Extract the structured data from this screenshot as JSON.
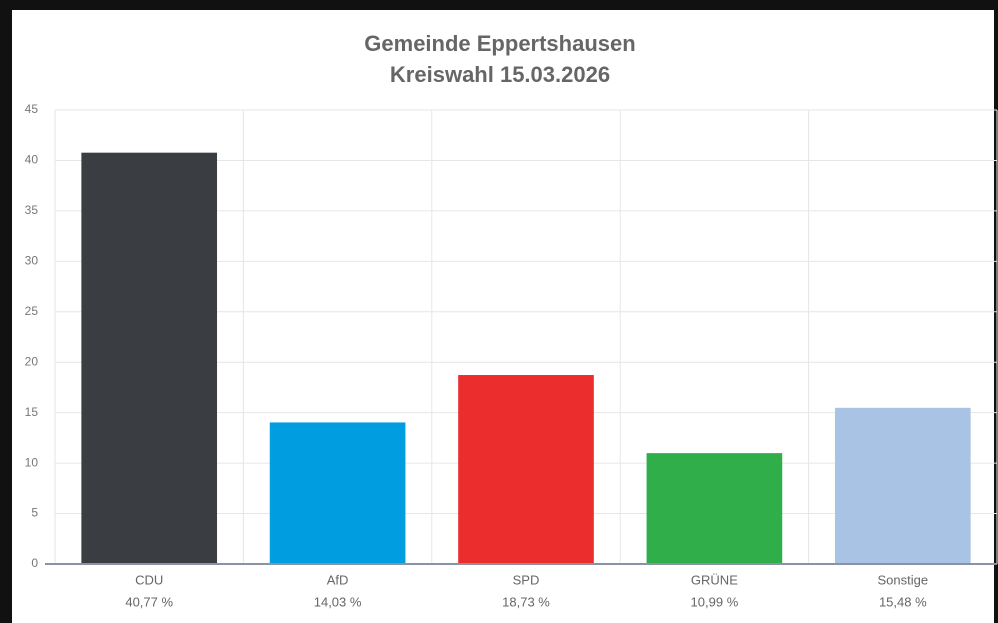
{
  "chart_data": {
    "type": "bar",
    "title": "Gemeinde Eppertshausen",
    "subtitle": "Kreiswahl 15.03.2026",
    "categories": [
      "CDU",
      "AfD",
      "SPD",
      "GRÜNE",
      "Sonstige"
    ],
    "values": [
      40.77,
      14.03,
      18.73,
      10.99,
      15.48
    ],
    "value_labels": [
      "40,77 %",
      "14,03 %",
      "18,73 %",
      "10,99 %",
      "15,48 %"
    ],
    "colors": [
      "#3a3d41",
      "#009ee0",
      "#eb2d2e",
      "#2fae4a",
      "#a9c3e4"
    ],
    "ylim": [
      0,
      45
    ],
    "yticks": [
      0,
      5,
      10,
      15,
      20,
      25,
      30,
      35,
      40,
      45
    ],
    "grid": true
  }
}
